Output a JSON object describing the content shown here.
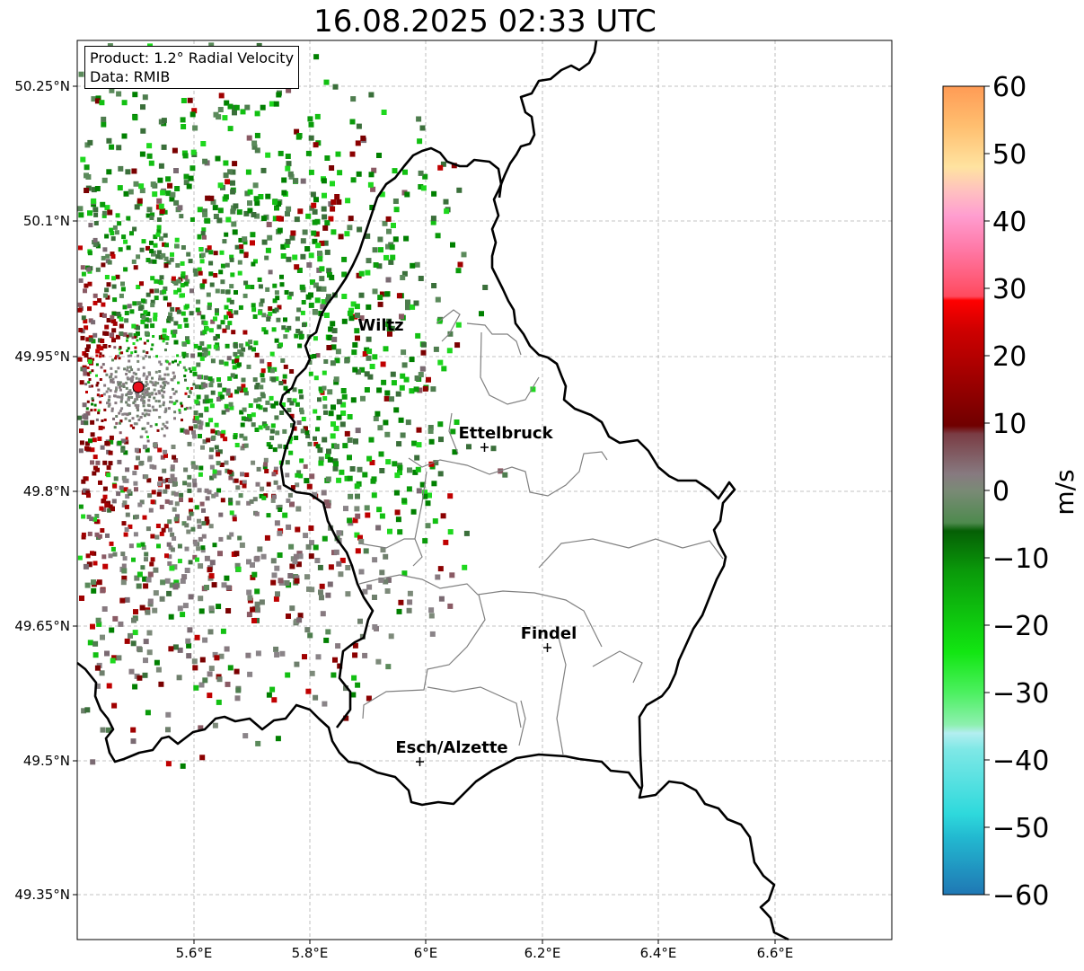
{
  "title": "16.08.2025 02:33 UTC",
  "info": {
    "product": "Product: 1.2° Radial Velocity",
    "source": "Data: RMIB"
  },
  "lon_ticks": [
    "5.6°E",
    "5.8°E",
    "6°E",
    "6.2°E",
    "6.4°E",
    "6.6°E"
  ],
  "lat_ticks": [
    "50.25°N",
    "50.1°N",
    "49.95°N",
    "49.8°N",
    "49.65°N",
    "49.5°N",
    "49.35°N"
  ],
  "cities": [
    {
      "name": "Wiltz",
      "lon": 5.93,
      "lat": 49.968
    },
    {
      "name": "Ettelbruck",
      "lon": 6.1,
      "lat": 49.85
    },
    {
      "name": "Findel",
      "lon": 6.21,
      "lat": 49.627
    },
    {
      "name": "Esch/Alzette",
      "lon": 5.99,
      "lat": 49.5
    }
  ],
  "radar": {
    "lon": 5.505,
    "lat": 49.915,
    "color": "#e8101e"
  },
  "colorbar": {
    "label": "m/s",
    "min": -60,
    "max": 60,
    "ticks": [
      "60",
      "50",
      "40",
      "30",
      "20",
      "10",
      "0",
      "−10",
      "−20",
      "−30",
      "−40",
      "−50",
      "−60"
    ]
  },
  "colors": {
    "approaching_green": "#0a9a0a",
    "receding_red": "#8b0000",
    "border": "#000000",
    "canton_border": "#808080",
    "grid": "#b0b0b0"
  }
}
